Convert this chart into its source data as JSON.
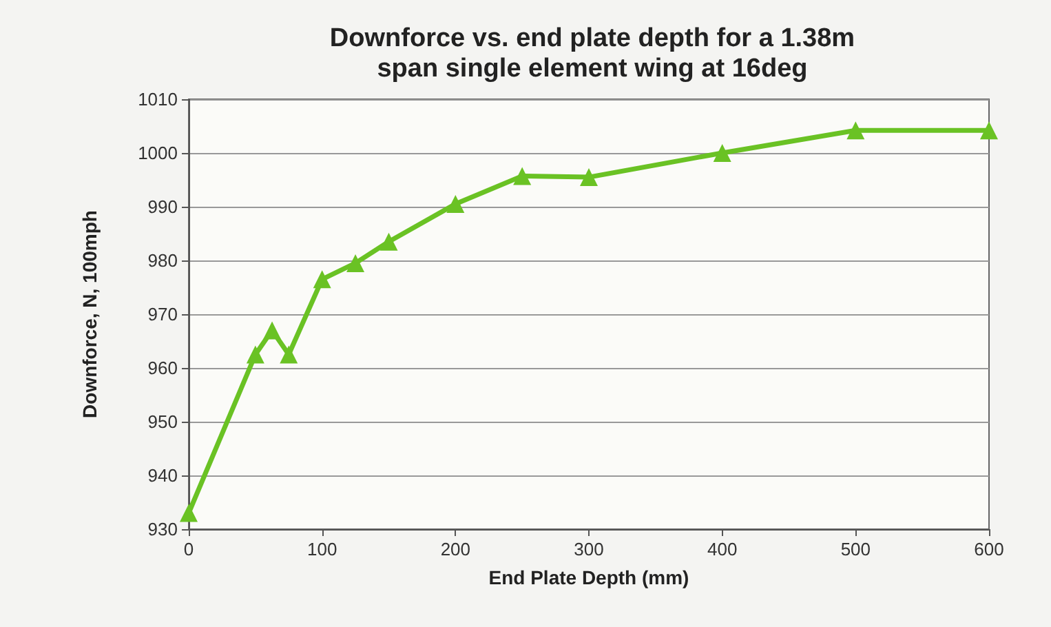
{
  "chart_data": {
    "type": "line",
    "title": "Downforce vs. end plate depth for a 1.38m\nspan single element wing at 16deg",
    "xlabel": "End Plate Depth (mm)",
    "ylabel": "Downforce, N, 100mph",
    "x": [
      0,
      50,
      62.5,
      75,
      100,
      125,
      150,
      200,
      250,
      300,
      400,
      500,
      600
    ],
    "series": [
      {
        "color": "#6ac224",
        "values": [
          933,
          962.5,
          967,
          962.5,
          976.5,
          979.5,
          983.5,
          990.5,
          995.7,
          995.5,
          1000,
          1004.2,
          1004.2
        ]
      }
    ],
    "xlim": [
      0,
      600
    ],
    "xticks": [
      0,
      100,
      200,
      300,
      400,
      500,
      600
    ],
    "ylim": [
      930,
      1010
    ],
    "yticks": [
      930,
      940,
      950,
      960,
      970,
      980,
      990,
      1000,
      1010
    ],
    "grid": "y",
    "marker": "triangle",
    "line_style": "solid"
  }
}
